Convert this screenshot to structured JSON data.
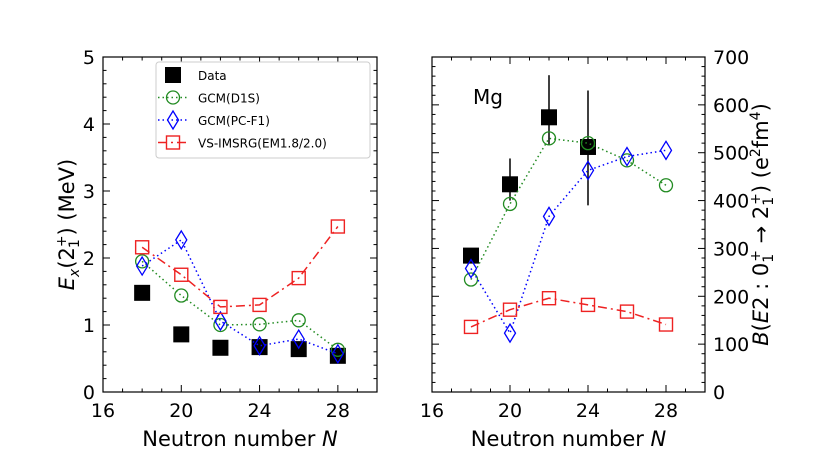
{
  "chart_data": [
    {
      "type": "scatter",
      "panel": "left",
      "xlabel": "Neutron number N",
      "ylabel": "E_x(2_1^+) (MeV)",
      "xlim": [
        16,
        30
      ],
      "ylim": [
        0,
        5
      ],
      "xticks": [
        16,
        20,
        24,
        28
      ],
      "yticks": [
        0,
        1,
        2,
        3,
        4,
        5
      ],
      "legend_position": "top-center",
      "series": [
        {
          "name": "Data",
          "style": "square-filled",
          "color": "#000000",
          "x": [
            18,
            20,
            22,
            24,
            26,
            28
          ],
          "values": [
            1.48,
            0.86,
            0.66,
            0.67,
            0.64,
            0.54
          ]
        },
        {
          "name": "GCM(D1S)",
          "style": "circle-open-dotted",
          "color": "#228B22",
          "x": [
            18,
            20,
            22,
            24,
            26,
            28
          ],
          "values": [
            1.95,
            1.44,
            1.0,
            1.01,
            1.07,
            0.63
          ]
        },
        {
          "name": "GCM(PC-F1)",
          "style": "diamond-open-dotted",
          "color": "#0000ff",
          "x": [
            18,
            20,
            22,
            24,
            26,
            28
          ],
          "values": [
            1.88,
            2.27,
            1.06,
            0.69,
            0.79,
            0.57
          ]
        },
        {
          "name": "VS-IMSRG(EM1.8/2.0)",
          "style": "square-open-dashdot",
          "color": "#ee2222",
          "x": [
            18,
            20,
            22,
            24,
            26,
            28
          ],
          "values": [
            2.16,
            1.75,
            1.27,
            1.3,
            1.7,
            2.47
          ]
        }
      ]
    },
    {
      "type": "scatter",
      "panel": "right",
      "annotation": "Mg",
      "xlabel": "Neutron number N",
      "ylabel": "B(E2: 0_1^+ → 2_1^+) (e^2fm^4)",
      "xlim": [
        16,
        30
      ],
      "ylim": [
        0,
        700
      ],
      "xticks": [
        16,
        20,
        24,
        28
      ],
      "yticks": [
        0,
        100,
        200,
        300,
        400,
        500,
        600,
        700
      ],
      "series": [
        {
          "name": "Data",
          "style": "square-filled",
          "color": "#000000",
          "x": [
            18,
            20,
            22,
            24
          ],
          "values": [
            285,
            434,
            574,
            512
          ],
          "err_low": [
            15,
            34,
            58,
            122
          ],
          "err_high": [
            15,
            54,
            88,
            118
          ]
        },
        {
          "name": "GCM(D1S)",
          "style": "circle-open-dotted",
          "color": "#228B22",
          "x": [
            18,
            20,
            22,
            24,
            26,
            28
          ],
          "values": [
            235,
            393,
            530,
            520,
            484,
            432
          ]
        },
        {
          "name": "GCM(PC-F1)",
          "style": "diamond-open-dotted",
          "color": "#0000ff",
          "x": [
            18,
            20,
            22,
            24,
            26,
            28
          ],
          "values": [
            258,
            123,
            367,
            463,
            492,
            505
          ]
        },
        {
          "name": "VS-IMSRG(EM1.8/2.0)",
          "style": "square-open-dashdot",
          "color": "#ee2222",
          "x": [
            18,
            20,
            22,
            24,
            26,
            28
          ],
          "values": [
            136,
            172,
            196,
            182,
            168,
            141
          ]
        }
      ]
    }
  ]
}
